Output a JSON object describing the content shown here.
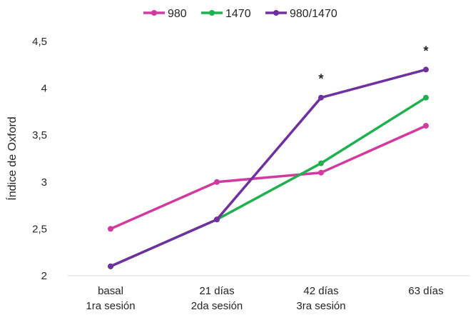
{
  "chart_data": {
    "type": "line",
    "title": "",
    "xlabel": "",
    "ylabel": "Índice de Oxford",
    "categories": [
      [
        "basal",
        "1ra sesión"
      ],
      [
        "21 días",
        "2da sesión"
      ],
      [
        "42 días",
        "3ra sesión"
      ],
      [
        "63 días"
      ]
    ],
    "y_ticks": [
      "2",
      "2,5",
      "3",
      "3,5",
      "4",
      "4,5"
    ],
    "ylim": [
      2,
      4.5
    ],
    "grid": false,
    "legend_position": "top",
    "series": [
      {
        "name": "980",
        "values": [
          2.5,
          3.0,
          3.1,
          3.6
        ],
        "color": "#d23a9f"
      },
      {
        "name": "1470",
        "values": [
          2.1,
          2.6,
          3.2,
          3.9
        ],
        "color": "#1fb14f"
      },
      {
        "name": "980/1470",
        "values": [
          2.1,
          2.6,
          3.9,
          4.2
        ],
        "color": "#7030a0"
      }
    ],
    "annotations": [
      {
        "text": "*",
        "category_index": 2,
        "y": 3.9
      },
      {
        "text": "*",
        "category_index": 3,
        "y": 4.2
      }
    ]
  }
}
